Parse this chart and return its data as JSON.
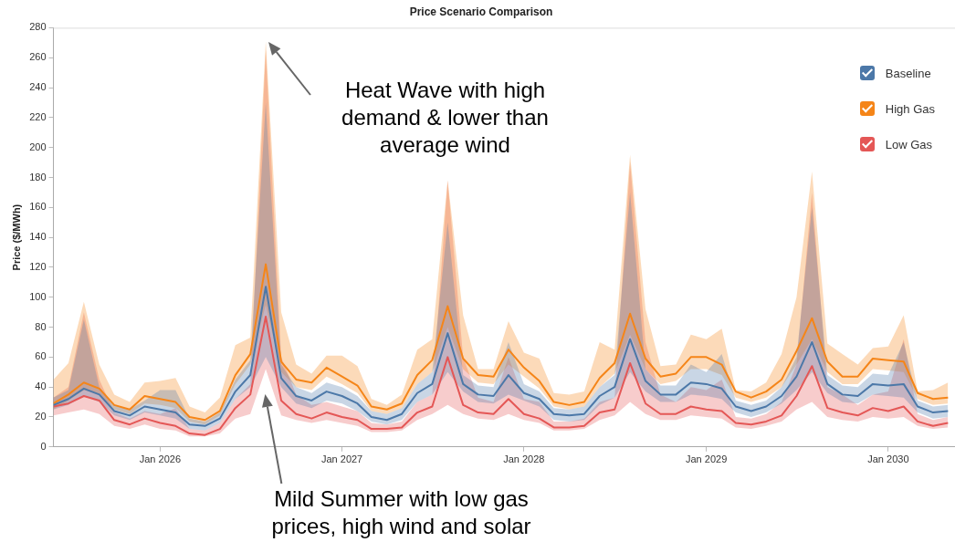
{
  "chart_data": {
    "type": "line",
    "title": "Price Scenario Comparison",
    "ylabel": "Price ($/MWh)",
    "x": [
      "2025-06",
      "2025-07",
      "2025-08",
      "2025-09",
      "2025-10",
      "2025-11",
      "2025-12",
      "2026-01",
      "2026-02",
      "2026-03",
      "2026-04",
      "2026-05",
      "2026-06",
      "2026-07",
      "2026-08",
      "2026-09",
      "2026-10",
      "2026-11",
      "2026-12",
      "2027-01",
      "2027-02",
      "2027-03",
      "2027-04",
      "2027-05",
      "2027-06",
      "2027-07",
      "2027-08",
      "2027-09",
      "2027-10",
      "2027-11",
      "2027-12",
      "2028-01",
      "2028-02",
      "2028-03",
      "2028-04",
      "2028-05",
      "2028-06",
      "2028-07",
      "2028-08",
      "2028-09",
      "2028-10",
      "2028-11",
      "2028-12",
      "2029-01",
      "2029-02",
      "2029-03",
      "2029-04",
      "2029-05",
      "2029-06",
      "2029-07",
      "2029-08",
      "2029-09",
      "2029-10",
      "2029-11",
      "2029-12",
      "2030-01",
      "2030-02",
      "2030-03",
      "2030-04",
      "2030-05"
    ],
    "series": [
      {
        "name": "Baseline",
        "color": "#4c78a8",
        "values": [
          28,
          32,
          39,
          35,
          24,
          21,
          27,
          25,
          23,
          15,
          14,
          19,
          37,
          48,
          107,
          46,
          34,
          31,
          37,
          34,
          29,
          20,
          18,
          22,
          36,
          42,
          76,
          42,
          35,
          34,
          48,
          36,
          32,
          22,
          21,
          22,
          34,
          40,
          72,
          44,
          35,
          35,
          43,
          42,
          39,
          27,
          24,
          27,
          34,
          47,
          70,
          42,
          35,
          34,
          42,
          41,
          42,
          27,
          23,
          24
        ],
        "lower": [
          25,
          28,
          34,
          30,
          21,
          18,
          23,
          21,
          19,
          12,
          11,
          16,
          32,
          40,
          60,
          40,
          29,
          26,
          31,
          29,
          24,
          17,
          15,
          18,
          30,
          35,
          50,
          37,
          30,
          29,
          35,
          31,
          27,
          18,
          17,
          18,
          28,
          33,
          50,
          37,
          30,
          30,
          35,
          34,
          32,
          23,
          20,
          23,
          29,
          38,
          50,
          36,
          30,
          29,
          35,
          34,
          33,
          23,
          19,
          20
        ],
        "upper": [
          33,
          38,
          85,
          40,
          28,
          25,
          31,
          38,
          38,
          19,
          17,
          23,
          45,
          58,
          230,
          55,
          40,
          36,
          43,
          40,
          34,
          24,
          22,
          26,
          42,
          50,
          150,
          48,
          41,
          40,
          70,
          42,
          37,
          26,
          25,
          27,
          40,
          48,
          170,
          52,
          41,
          41,
          55,
          50,
          62,
          31,
          28,
          31,
          40,
          60,
          160,
          48,
          41,
          40,
          49,
          48,
          70,
          31,
          27,
          28
        ]
      },
      {
        "name": "High Gas",
        "color": "#f58518",
        "values": [
          29,
          35,
          43,
          39,
          28,
          25,
          34,
          32,
          30,
          20,
          18,
          24,
          48,
          62,
          122,
          57,
          45,
          43,
          53,
          47,
          41,
          27,
          25,
          29,
          48,
          58,
          94,
          59,
          48,
          47,
          65,
          53,
          44,
          30,
          28,
          30,
          46,
          56,
          89,
          59,
          47,
          49,
          60,
          60,
          55,
          37,
          33,
          37,
          45,
          64,
          86,
          57,
          47,
          47,
          59,
          58,
          57,
          36,
          32,
          33
        ],
        "lower": [
          25,
          31,
          38,
          35,
          25,
          22,
          29,
          28,
          26,
          17,
          15,
          21,
          42,
          55,
          95,
          50,
          40,
          38,
          47,
          42,
          36,
          24,
          22,
          26,
          42,
          50,
          80,
          52,
          43,
          42,
          55,
          47,
          39,
          27,
          25,
          27,
          40,
          49,
          75,
          52,
          42,
          44,
          52,
          52,
          48,
          33,
          30,
          33,
          40,
          55,
          72,
          50,
          42,
          42,
          52,
          51,
          50,
          32,
          28,
          29
        ],
        "upper": [
          45,
          56,
          97,
          55,
          35,
          30,
          43,
          44,
          46,
          27,
          23,
          33,
          68,
          73,
          271,
          90,
          55,
          49,
          61,
          61,
          54,
          32,
          28,
          35,
          65,
          72,
          178,
          88,
          52,
          52,
          84,
          63,
          59,
          36,
          35,
          37,
          70,
          65,
          195,
          92,
          54,
          55,
          75,
          72,
          79,
          38,
          37,
          43,
          62,
          100,
          184,
          69,
          62,
          55,
          66,
          67,
          88,
          37,
          38,
          43
        ]
      },
      {
        "name": "Low Gas",
        "color": "#e45756",
        "values": [
          27,
          29,
          34,
          31,
          18,
          15,
          19,
          16,
          14,
          9,
          8,
          12,
          26,
          35,
          87,
          31,
          22,
          19,
          23,
          20,
          18,
          12,
          12,
          13,
          23,
          27,
          60,
          28,
          23,
          22,
          32,
          22,
          19,
          13,
          13,
          14,
          23,
          25,
          56,
          29,
          22,
          22,
          27,
          25,
          24,
          16,
          15,
          17,
          21,
          34,
          54,
          26,
          23,
          21,
          26,
          24,
          27,
          17,
          14,
          16
        ],
        "lower": [
          21,
          23,
          25,
          22,
          14,
          12,
          15,
          12,
          11,
          7,
          7,
          9,
          19,
          22,
          52,
          21,
          18,
          16,
          18,
          16,
          14,
          10,
          10,
          11,
          18,
          22,
          28,
          22,
          19,
          18,
          22,
          18,
          16,
          11,
          11,
          12,
          18,
          21,
          30,
          22,
          18,
          18,
          21,
          20,
          19,
          13,
          12,
          14,
          17,
          25,
          30,
          20,
          18,
          17,
          20,
          19,
          20,
          14,
          12,
          13
        ],
        "upper": [
          33,
          40,
          90,
          45,
          23,
          19,
          24,
          22,
          26,
          12,
          11,
          16,
          32,
          42,
          265,
          60,
          35,
          28,
          30,
          27,
          24,
          16,
          15,
          17,
          30,
          35,
          178,
          60,
          33,
          30,
          60,
          32,
          30,
          17,
          17,
          19,
          30,
          33,
          190,
          70,
          35,
          30,
          40,
          38,
          45,
          20,
          19,
          22,
          30,
          55,
          170,
          40,
          35,
          28,
          35,
          37,
          72,
          22,
          18,
          20
        ]
      }
    ],
    "xlim": [
      "2025-06",
      "2030-05-15"
    ],
    "xticks": [
      {
        "value": "2026-01",
        "label": "Jan 2026"
      },
      {
        "value": "2027-01",
        "label": "Jan 2027"
      },
      {
        "value": "2028-01",
        "label": "Jan 2028"
      },
      {
        "value": "2029-01",
        "label": "Jan 2029"
      },
      {
        "value": "2030-01",
        "label": "Jan 2030"
      }
    ],
    "ylim": [
      0,
      280
    ],
    "yticks": [
      0,
      20,
      40,
      60,
      80,
      100,
      120,
      140,
      160,
      180,
      200,
      220,
      240,
      260,
      280
    ],
    "grid": false,
    "legend": "top right",
    "annotations": [
      "Heat Wave with high demand & lower than average wind",
      "Mild Summer with low gas prices, high wind and solar"
    ]
  }
}
